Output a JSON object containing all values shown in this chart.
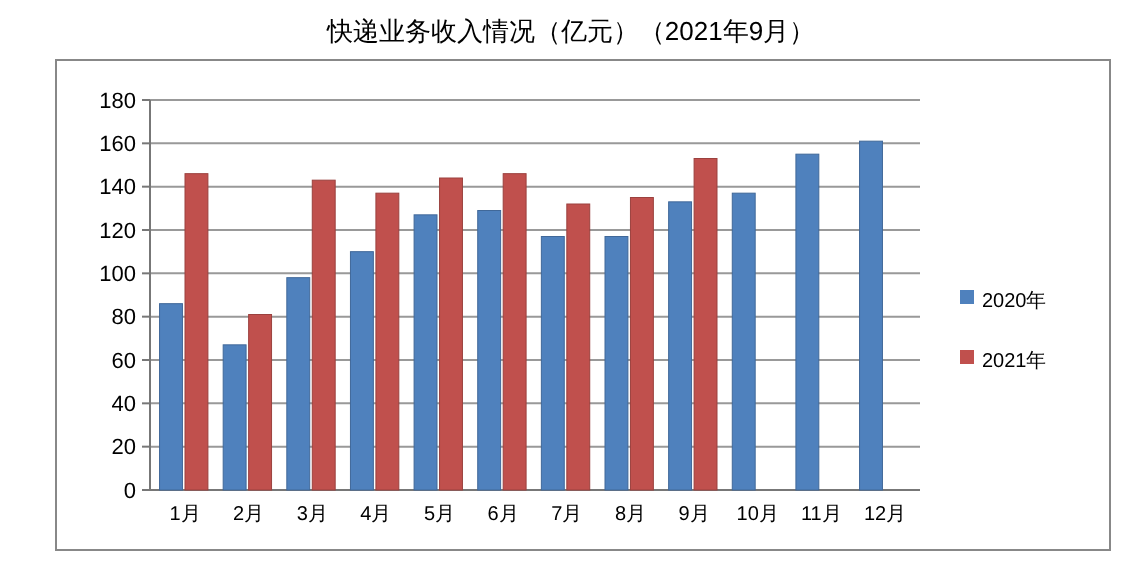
{
  "chart_data": {
    "type": "bar",
    "title": "快递业务收入情况（亿元）（2021年9月）",
    "categories": [
      "1月",
      "2月",
      "3月",
      "4月",
      "5月",
      "6月",
      "7月",
      "8月",
      "9月",
      "10月",
      "11月",
      "12月"
    ],
    "series": [
      {
        "name": "2020年",
        "color": "#4f81bd",
        "values": [
          86,
          67,
          98,
          110,
          127,
          129,
          117,
          117,
          133,
          137,
          155,
          161
        ]
      },
      {
        "name": "2021年",
        "color": "#c0504d",
        "values": [
          146,
          81,
          143,
          137,
          144,
          146,
          132,
          135,
          153,
          null,
          null,
          null
        ]
      }
    ],
    "ylim": [
      0,
      180
    ],
    "yticks": [
      0,
      20,
      40,
      60,
      80,
      100,
      120,
      140,
      160,
      180
    ],
    "grid": "y",
    "legend": "right"
  }
}
